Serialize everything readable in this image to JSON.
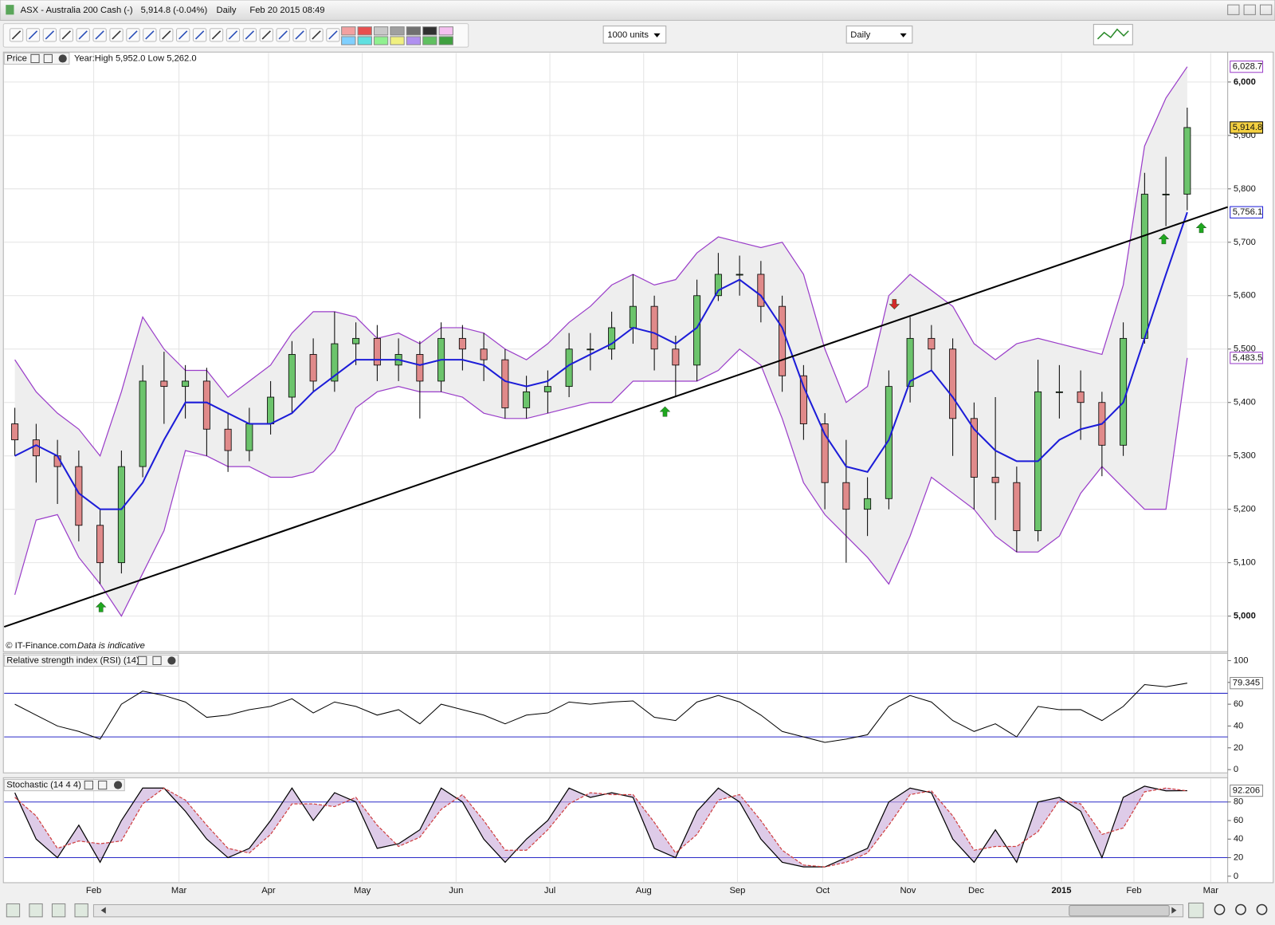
{
  "window": {
    "title": "ASX - Australia 200 Cash (-)",
    "quote": "5,914.8 (-0.04%)",
    "interval": "Daily",
    "timestamp": "Feb 20 2015 08:49"
  },
  "toolbar": {
    "units": "1000 units",
    "period": "Daily"
  },
  "footer": {
    "source": "© IT-Finance.com",
    "note": "Data is indicative"
  },
  "chart_data": [
    {
      "type": "candlestick",
      "title": "Price",
      "subtitle": "Year:High 5,952.0 Low 5,262.0",
      "x": [
        2.5,
        7.5,
        12.5,
        17.5,
        22.5,
        27.5,
        32.5,
        37.5,
        42.5,
        47.5,
        52.5,
        57.5,
        62.5,
        67.5,
        72.5,
        77.5,
        82.5,
        87.5,
        92.5,
        97.5,
        102.5,
        107.5,
        112.5,
        117.5,
        122.5,
        127.5,
        132.5,
        137.5,
        142.5,
        147.5,
        152.5,
        157.5,
        162.5,
        167.5,
        172.5,
        177.5,
        182.5,
        187.5,
        192.5,
        197.5,
        202.5,
        207.5,
        212.5,
        217.5,
        222.5,
        227.5,
        232.5,
        237.5,
        242.5,
        247.5,
        252.5,
        257.5,
        262.5,
        267.5,
        272.5,
        277.5
      ],
      "open": [
        5360,
        5330,
        5300,
        5280,
        5170,
        5100,
        5280,
        5440,
        5430,
        5440,
        5350,
        5310,
        5360,
        5410,
        5490,
        5440,
        5510,
        5520,
        5470,
        5490,
        5440,
        5520,
        5500,
        5480,
        5390,
        5420,
        5430,
        5500,
        5500,
        5540,
        5580,
        5500,
        5470,
        5600,
        5640,
        5640,
        5580,
        5450,
        5360,
        5250,
        5200,
        5220,
        5430,
        5520,
        5500,
        5370,
        5260,
        5250,
        5160,
        5420,
        5420,
        5400,
        5320,
        5520,
        5790,
        5790
      ],
      "high": [
        5390,
        5360,
        5330,
        5310,
        5200,
        5310,
        5470,
        5495,
        5470,
        5465,
        5380,
        5390,
        5440,
        5515,
        5520,
        5570,
        5550,
        5545,
        5520,
        5515,
        5550,
        5545,
        5530,
        5500,
        5450,
        5460,
        5530,
        5530,
        5570,
        5640,
        5600,
        5525,
        5630,
        5680,
        5675,
        5665,
        5600,
        5470,
        5380,
        5330,
        5260,
        5460,
        5560,
        5545,
        5520,
        5400,
        5410,
        5280,
        5480,
        5470,
        5460,
        5420,
        5550,
        5830,
        5860,
        5952
      ],
      "low": [
        5300,
        5250,
        5210,
        5140,
        5060,
        5080,
        5260,
        5360,
        5370,
        5300,
        5270,
        5290,
        5340,
        5380,
        5420,
        5420,
        5470,
        5440,
        5440,
        5370,
        5420,
        5460,
        5440,
        5370,
        5370,
        5380,
        5410,
        5460,
        5480,
        5510,
        5460,
        5410,
        5440,
        5590,
        5600,
        5550,
        5420,
        5330,
        5200,
        5100,
        5150,
        5200,
        5400,
        5460,
        5300,
        5200,
        5180,
        5120,
        5140,
        5370,
        5330,
        5262,
        5300,
        5510,
        5730,
        5760
      ],
      "close": [
        5330,
        5300,
        5280,
        5170,
        5100,
        5280,
        5440,
        5430,
        5440,
        5350,
        5310,
        5360,
        5410,
        5490,
        5440,
        5510,
        5520,
        5470,
        5490,
        5440,
        5520,
        5500,
        5480,
        5390,
        5420,
        5430,
        5500,
        5500,
        5540,
        5580,
        5500,
        5470,
        5600,
        5640,
        5640,
        5580,
        5450,
        5360,
        5250,
        5200,
        5220,
        5430,
        5520,
        5500,
        5370,
        5260,
        5250,
        5160,
        5420,
        5420,
        5400,
        5320,
        5520,
        5790,
        5790,
        5914.8
      ],
      "up_color": "#6cc46c",
      "down_color": "#e08a8a",
      "moving_average": {
        "color": "#1c1cd8",
        "values": [
          5300,
          5320,
          5300,
          5230,
          5200,
          5200,
          5250,
          5330,
          5400,
          5400,
          5380,
          5360,
          5360,
          5380,
          5420,
          5450,
          5480,
          5480,
          5480,
          5470,
          5480,
          5480,
          5470,
          5440,
          5430,
          5440,
          5470,
          5490,
          5510,
          5540,
          5530,
          5510,
          5540,
          5610,
          5630,
          5600,
          5540,
          5430,
          5340,
          5280,
          5270,
          5330,
          5440,
          5460,
          5410,
          5350,
          5310,
          5290,
          5290,
          5330,
          5350,
          5360,
          5400,
          5520,
          5640,
          5756.1
        ]
      },
      "bollinger": {
        "color": "#9a3dc9",
        "fill": "#eeeeee",
        "upper": [
          5480,
          5420,
          5380,
          5350,
          5300,
          5420,
          5560,
          5500,
          5460,
          5460,
          5410,
          5440,
          5470,
          5530,
          5570,
          5570,
          5560,
          5520,
          5530,
          5510,
          5540,
          5540,
          5530,
          5500,
          5480,
          5510,
          5550,
          5580,
          5620,
          5640,
          5620,
          5630,
          5680,
          5710,
          5700,
          5690,
          5700,
          5640,
          5500,
          5400,
          5430,
          5600,
          5640,
          5610,
          5580,
          5510,
          5480,
          5510,
          5520,
          5510,
          5500,
          5490,
          5620,
          5880,
          5970,
          6028.7
        ],
        "lower": [
          5040,
          5180,
          5190,
          5110,
          5060,
          5000,
          5080,
          5160,
          5310,
          5300,
          5280,
          5280,
          5260,
          5260,
          5270,
          5310,
          5390,
          5420,
          5430,
          5420,
          5420,
          5410,
          5380,
          5370,
          5370,
          5380,
          5390,
          5400,
          5400,
          5440,
          5440,
          5440,
          5440,
          5460,
          5500,
          5470,
          5370,
          5250,
          5190,
          5150,
          5110,
          5060,
          5150,
          5260,
          5230,
          5200,
          5150,
          5120,
          5120,
          5150,
          5230,
          5280,
          5240,
          5200,
          5200,
          5483.5
        ]
      },
      "trendline": {
        "color": "#000000",
        "x": [
          0,
          287
        ],
        "y": [
          4980,
          5766
        ]
      },
      "signals": [
        {
          "x": 22.7,
          "y": 5017,
          "direction": "up",
          "color": "#1fa81f"
        },
        {
          "x": 155,
          "y": 5383,
          "direction": "up",
          "color": "#1fa81f"
        },
        {
          "x": 208.8,
          "y": 5584,
          "direction": "down",
          "color": "#d42a2a"
        },
        {
          "x": 272,
          "y": 5706,
          "direction": "up",
          "color": "#1fa81f"
        },
        {
          "x": 280.8,
          "y": 5727,
          "direction": "up",
          "color": "#1fa81f"
        }
      ],
      "price_tags": [
        {
          "value": 6028.7,
          "label": "6,028.7",
          "color": "#9a3dc9",
          "background": "#ffffff"
        },
        {
          "value": 5914.8,
          "label": "5,914.8",
          "color": "#000000",
          "background": "#f5d142"
        },
        {
          "value": 5756.1,
          "label": "5,756.1",
          "color": "#1c1cd8",
          "background": "#ffffff"
        },
        {
          "value": 5483.5,
          "label": "5,483.5",
          "color": "#9a3dc9",
          "background": "#ffffff"
        }
      ],
      "xlim": [
        0,
        287
      ],
      "xticks": [
        {
          "value": 21,
          "label": "Feb"
        },
        {
          "value": 41,
          "label": "Mar"
        },
        {
          "value": 62,
          "label": "Apr"
        },
        {
          "value": 84,
          "label": "May"
        },
        {
          "value": 106,
          "label": "Jun"
        },
        {
          "value": 128,
          "label": "Jul"
        },
        {
          "value": 150,
          "label": "Aug"
        },
        {
          "value": 172,
          "label": "Sep"
        },
        {
          "value": 192,
          "label": "Oct"
        },
        {
          "value": 212,
          "label": "Nov"
        },
        {
          "value": 228,
          "label": "Dec"
        },
        {
          "value": 248,
          "label": "2015"
        },
        {
          "value": 265,
          "label": "Feb"
        },
        {
          "value": 283,
          "label": "Mar"
        }
      ],
      "ylim": [
        4935,
        6050
      ],
      "yticks": [
        {
          "value": 5000,
          "label": "5,000"
        },
        {
          "value": 5100,
          "label": "5,100"
        },
        {
          "value": 5200,
          "label": "5,200"
        },
        {
          "value": 5300,
          "label": "5,300"
        },
        {
          "value": 5400,
          "label": "5,400"
        },
        {
          "value": 5500,
          "label": "5,500"
        },
        {
          "value": 5600,
          "label": "5,600"
        },
        {
          "value": 5700,
          "label": "5,700"
        },
        {
          "value": 5800,
          "label": "5,800"
        },
        {
          "value": 5900,
          "label": "5,900"
        },
        {
          "value": 6000,
          "label": "6,000"
        }
      ],
      "grid": true
    },
    {
      "type": "line",
      "title": "Relative strength index (RSI) (14)",
      "color": "#000000",
      "values": [
        60,
        50,
        40,
        35,
        28,
        60,
        72,
        68,
        62,
        48,
        50,
        55,
        58,
        65,
        52,
        62,
        58,
        50,
        55,
        42,
        60,
        55,
        50,
        42,
        50,
        52,
        62,
        60,
        62,
        63,
        48,
        45,
        62,
        68,
        62,
        50,
        35,
        30,
        25,
        28,
        32,
        58,
        68,
        62,
        45,
        35,
        42,
        30,
        58,
        55,
        55,
        45,
        58,
        78,
        76,
        79.345
      ],
      "levels": [
        30,
        70
      ],
      "level_color": "#2a2ac8",
      "ylim": [
        0,
        100
      ],
      "yticks": [
        0,
        20,
        40,
        60,
        80,
        100
      ],
      "tag": 79.345
    },
    {
      "type": "stochastic",
      "title": "Stochastic (14 4 4)",
      "series": [
        {
          "color": "#000000",
          "values": [
            90,
            40,
            20,
            55,
            15,
            60,
            95,
            95,
            70,
            40,
            20,
            30,
            60,
            95,
            60,
            90,
            80,
            30,
            35,
            50,
            95,
            80,
            40,
            15,
            40,
            60,
            95,
            85,
            90,
            85,
            30,
            20,
            70,
            95,
            80,
            40,
            15,
            10,
            10,
            20,
            30,
            80,
            95,
            90,
            40,
            15,
            50,
            15,
            80,
            85,
            70,
            20,
            85,
            97,
            92,
            92.206
          ]
        },
        {
          "color": "#d04040",
          "values": [
            85,
            65,
            30,
            38,
            35,
            38,
            78,
            95,
            82,
            55,
            30,
            25,
            45,
            78,
            78,
            75,
            85,
            55,
            32,
            42,
            72,
            88,
            60,
            28,
            28,
            50,
            78,
            90,
            88,
            88,
            58,
            25,
            45,
            82,
            88,
            60,
            28,
            12,
            10,
            15,
            25,
            55,
            88,
            92,
            65,
            28,
            32,
            32,
            48,
            82,
            78,
            45,
            52,
            91,
            95,
            92
          ]
        }
      ],
      "levels": [
        20,
        80
      ],
      "level_color": "#2a2ac8",
      "ylim": [
        0,
        100
      ],
      "yticks": [
        0,
        20,
        40,
        60,
        80
      ],
      "tag": 92.206
    }
  ]
}
